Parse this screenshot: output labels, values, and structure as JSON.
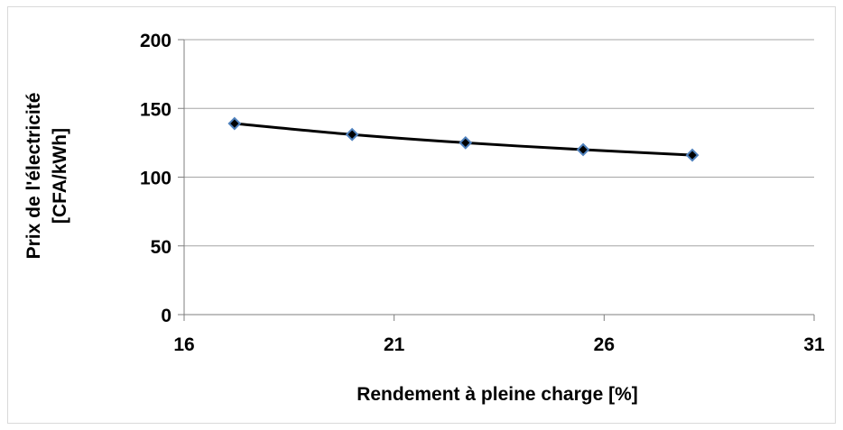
{
  "chart_data": {
    "type": "line",
    "title": "",
    "xlabel": "Rendement à pleine charge [%]",
    "ylabel_line1": "Prix de l'électricité",
    "ylabel_line2": "[CFA/kWh]",
    "xlim": [
      16,
      31
    ],
    "ylim": [
      0,
      200
    ],
    "xticks": [
      16,
      21,
      26,
      31
    ],
    "yticks": [
      0,
      50,
      100,
      150,
      200
    ],
    "grid": "horizontal",
    "legend": "none",
    "series": [
      {
        "x": [
          17.2,
          20.0,
          22.7,
          25.5,
          28.1
        ],
        "y": [
          139,
          131,
          125,
          120,
          116
        ]
      }
    ],
    "colors": {
      "line": "#000000",
      "marker_fill": "#000000",
      "marker_edge": "#4f81bd",
      "grid": "#a6a6a6",
      "axis": "#7f7f7f"
    }
  }
}
